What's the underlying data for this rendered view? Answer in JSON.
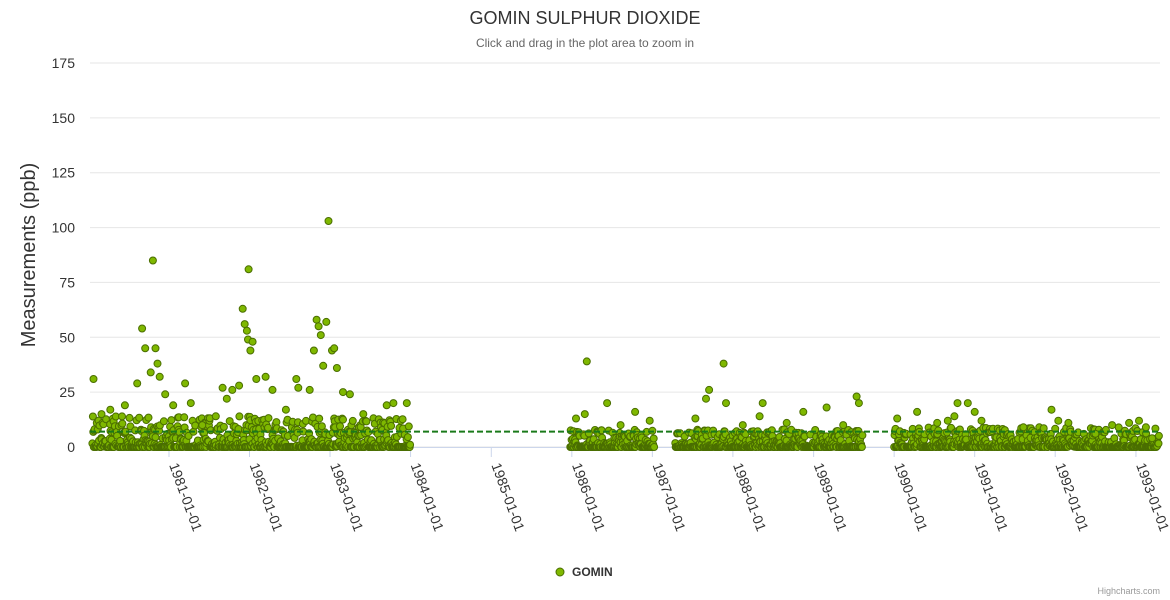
{
  "chart_data": {
    "type": "scatter",
    "title": "GOMIN SULPHUR DIOXIDE",
    "subtitle": "Click and drag in the plot area to zoom in",
    "ylabel": "Measurements (ppb)",
    "xlabel": "",
    "ylim": [
      0,
      175
    ],
    "yticks": [
      "0",
      "25",
      "50",
      "75",
      "100",
      "125",
      "150",
      "175"
    ],
    "xlim": [
      "1980-01-09",
      "1993-04-20"
    ],
    "xticks": [
      "1981-01-01",
      "1982-01-01",
      "1983-01-01",
      "1984-01-01",
      "1985-01-01",
      "1986-01-01",
      "1987-01-01",
      "1988-01-01",
      "1989-01-01",
      "1990-01-01",
      "1991-01-01",
      "1992-01-01",
      "1993-01-01"
    ],
    "reference_line": {
      "value": 7,
      "style": "dashed",
      "color": "#1a7a1a"
    },
    "legend": {
      "position": "bottom-center"
    },
    "credits": "Highcharts.com",
    "series": [
      {
        "name": "GOMIN",
        "color": "#7fb800",
        "stroke": "#4a6e00",
        "ranges": [
          {
            "from": "1980-01-20",
            "to": "1983-12-31",
            "typical_max": 14
          },
          {
            "from": "1985-12-25",
            "to": "1987-01-10",
            "typical_max": 8
          },
          {
            "from": "1987-04-15",
            "to": "1989-08-10",
            "typical_max": 8
          },
          {
            "from": "1990-01-01",
            "to": "1993-04-15",
            "typical_max": 9
          }
        ],
        "peaks": [
          [
            "1980-01-25",
            31
          ],
          [
            "1980-03-01",
            15
          ],
          [
            "1980-04-10",
            17
          ],
          [
            "1980-06-15",
            19
          ],
          [
            "1980-08-10",
            29
          ],
          [
            "1980-09-01",
            54
          ],
          [
            "1980-09-15",
            45
          ],
          [
            "1980-10-10",
            34
          ],
          [
            "1980-10-20",
            85
          ],
          [
            "1980-11-01",
            45
          ],
          [
            "1980-11-10",
            38
          ],
          [
            "1980-11-20",
            32
          ],
          [
            "1980-12-15",
            24
          ],
          [
            "1981-01-20",
            19
          ],
          [
            "1981-03-15",
            29
          ],
          [
            "1981-04-10",
            20
          ],
          [
            "1981-06-01",
            10
          ],
          [
            "1981-08-01",
            14
          ],
          [
            "1981-09-01",
            27
          ],
          [
            "1981-09-20",
            22
          ],
          [
            "1981-10-15",
            26
          ],
          [
            "1981-11-15",
            28
          ],
          [
            "1981-12-01",
            63
          ],
          [
            "1981-12-10",
            56
          ],
          [
            "1981-12-20",
            53
          ],
          [
            "1981-12-25",
            49
          ],
          [
            "1981-12-28",
            81
          ],
          [
            "1982-01-05",
            44
          ],
          [
            "1982-01-15",
            48
          ],
          [
            "1982-02-01",
            31
          ],
          [
            "1982-03-15",
            32
          ],
          [
            "1982-04-15",
            26
          ],
          [
            "1982-06-15",
            17
          ],
          [
            "1982-08-01",
            31
          ],
          [
            "1982-08-10",
            27
          ],
          [
            "1982-10-01",
            26
          ],
          [
            "1982-10-20",
            44
          ],
          [
            "1982-11-01",
            58
          ],
          [
            "1982-11-10",
            55
          ],
          [
            "1982-11-20",
            51
          ],
          [
            "1982-12-01",
            37
          ],
          [
            "1982-12-15",
            57
          ],
          [
            "1982-12-25",
            103
          ],
          [
            "1983-01-10",
            44
          ],
          [
            "1983-01-20",
            45
          ],
          [
            "1983-02-01",
            36
          ],
          [
            "1983-03-01",
            25
          ],
          [
            "1983-04-01",
            24
          ],
          [
            "1983-06-01",
            15
          ],
          [
            "1983-09-15",
            19
          ],
          [
            "1983-10-15",
            20
          ],
          [
            "1983-12-15",
            20
          ],
          [
            "1986-01-20",
            13
          ],
          [
            "1986-03-10",
            39
          ],
          [
            "1986-03-01",
            15
          ],
          [
            "1986-06-10",
            20
          ],
          [
            "1986-08-10",
            10
          ],
          [
            "1986-10-15",
            16
          ],
          [
            "1986-12-20",
            12
          ],
          [
            "1987-07-15",
            13
          ],
          [
            "1987-09-01",
            22
          ],
          [
            "1987-09-15",
            26
          ],
          [
            "1987-11-20",
            38
          ],
          [
            "1987-12-01",
            20
          ],
          [
            "1988-02-15",
            10
          ],
          [
            "1988-05-01",
            14
          ],
          [
            "1988-05-15",
            20
          ],
          [
            "1988-09-01",
            11
          ],
          [
            "1988-11-15",
            16
          ],
          [
            "1989-03-01",
            18
          ],
          [
            "1989-05-15",
            10
          ],
          [
            "1989-07-15",
            23
          ],
          [
            "1989-07-25",
            20
          ],
          [
            "1990-01-15",
            13
          ],
          [
            "1990-04-15",
            16
          ],
          [
            "1990-07-15",
            11
          ],
          [
            "1990-09-01",
            12
          ],
          [
            "1990-10-01",
            14
          ],
          [
            "1990-10-15",
            20
          ],
          [
            "1990-12-01",
            20
          ],
          [
            "1991-01-01",
            16
          ],
          [
            "1991-02-01",
            12
          ],
          [
            "1991-08-10",
            9
          ],
          [
            "1991-12-15",
            17
          ],
          [
            "1992-01-15",
            12
          ],
          [
            "1992-03-01",
            11
          ],
          [
            "1992-07-01",
            6
          ],
          [
            "1992-09-15",
            10
          ],
          [
            "1992-12-01",
            11
          ],
          [
            "1993-01-15",
            12
          ],
          [
            "1993-02-15",
            9
          ],
          [
            "1993-03-15",
            4
          ]
        ]
      }
    ]
  }
}
